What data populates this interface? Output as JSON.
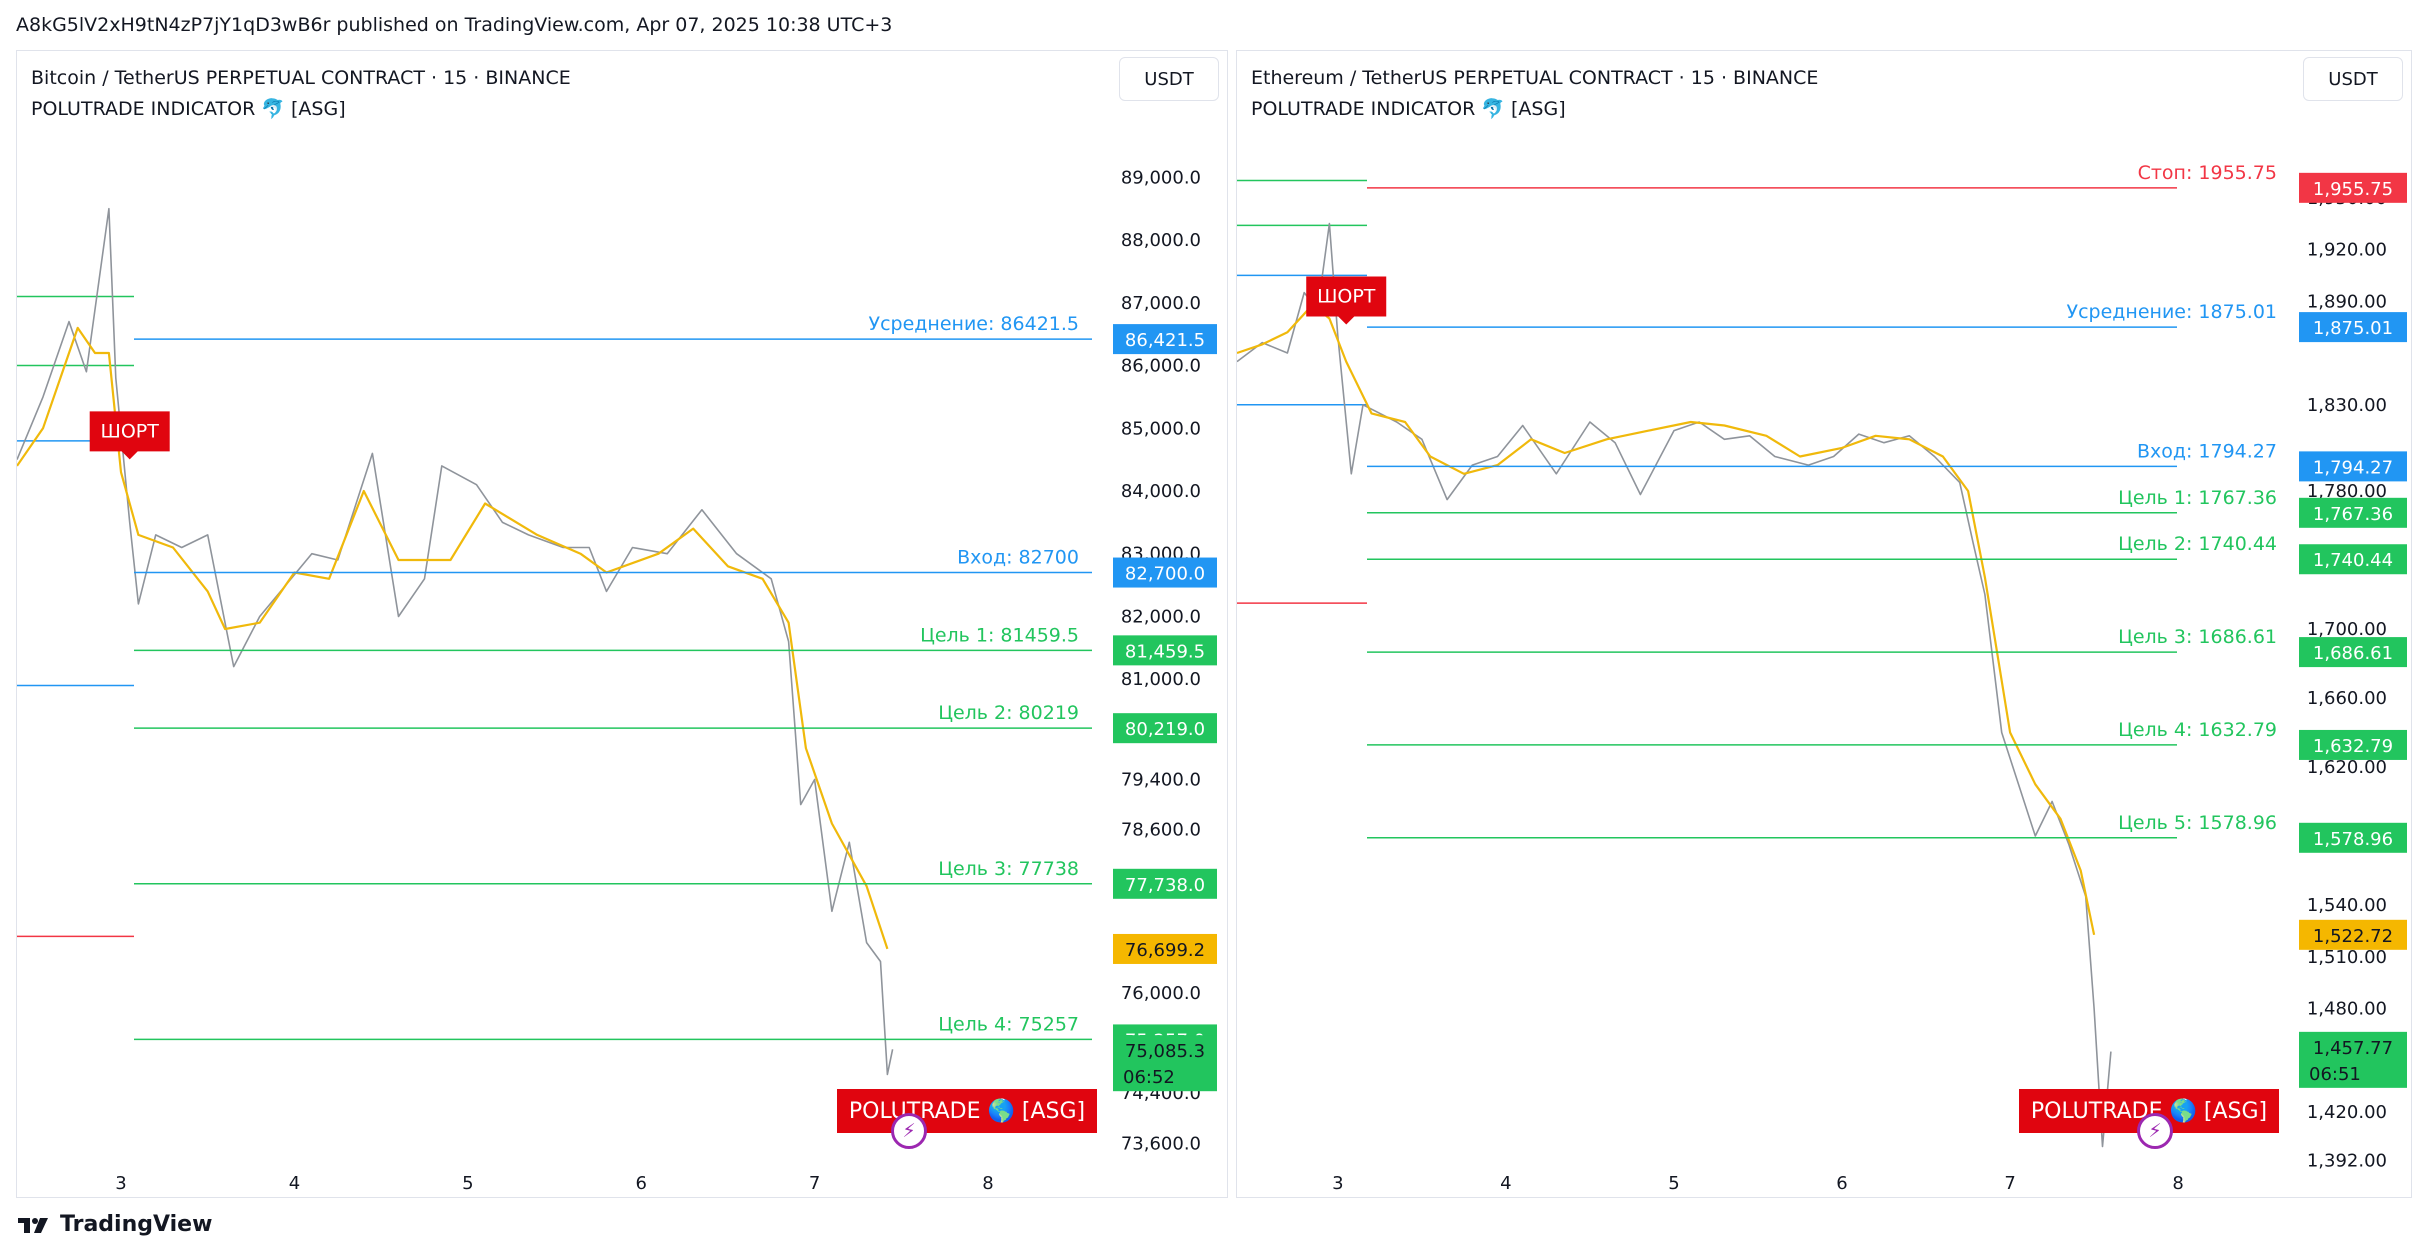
{
  "header": {
    "text": "A8kG5lV2xH9tN4zP7jY1qD3wB6r published on TradingView.com, Apr 07, 2025 10:38 UTC+3"
  },
  "footer": {
    "brand": "TradingView"
  },
  "colors": {
    "up_green": "#22c55e",
    "stop_red": "#f23645",
    "blue": "#2196f3",
    "yellow": "#f5b700",
    "short_red": "#e0050f",
    "candle": "#8f949b",
    "ma": "#f0b90b"
  },
  "chart_data": [
    {
      "type": "line",
      "title": "Bitcoin / TetherUS PERPETUAL CONTRACT · 15 · BINANCE",
      "indicator": "POLUTRADE INDICATOR 🐬 [ASG]",
      "unit": "USDT",
      "x_ticks": [
        "3",
        "4",
        "5",
        "6",
        "7",
        "8"
      ],
      "y_ticks": [
        "89,000.0",
        "88,000.0",
        "87,000.0",
        "86,000.0",
        "85,000.0",
        "84,000.0",
        "83,000.0",
        "82,000.0",
        "81,000.0",
        "79,400.0",
        "78,600.0",
        "76,000.0",
        "74,400.0",
        "73,600.0"
      ],
      "ylim": [
        73000,
        89500
      ],
      "xlim": [
        2.4,
        8.6
      ],
      "series": [
        {
          "values": [
            [
              2.4,
              84400
            ],
            [
              2.55,
              85000
            ],
            [
              2.75,
              86600
            ],
            [
              2.85,
              86200
            ],
            [
              2.93,
              86200
            ],
            [
              3.0,
              84300
            ],
            [
              3.1,
              83300
            ],
            [
              3.3,
              83100
            ],
            [
              3.5,
              82400
            ],
            [
              3.6,
              81800
            ],
            [
              3.8,
              81900
            ],
            [
              4.0,
              82700
            ],
            [
              4.2,
              82600
            ],
            [
              4.4,
              84000
            ],
            [
              4.6,
              82900
            ],
            [
              4.9,
              82900
            ],
            [
              5.1,
              83800
            ],
            [
              5.4,
              83300
            ],
            [
              5.65,
              83000
            ],
            [
              5.8,
              82700
            ],
            [
              6.1,
              83000
            ],
            [
              6.3,
              83400
            ],
            [
              6.5,
              82800
            ],
            [
              6.7,
              82600
            ],
            [
              6.85,
              81900
            ],
            [
              6.95,
              79900
            ],
            [
              7.1,
              78700
            ],
            [
              7.3,
              77700
            ],
            [
              7.42,
              76700
            ]
          ]
        },
        {
          "values": [
            [
              2.4,
              84500
            ],
            [
              2.55,
              85500
            ],
            [
              2.7,
              86700
            ],
            [
              2.8,
              85900
            ],
            [
              2.93,
              88500
            ],
            [
              2.97,
              85800
            ],
            [
              3.05,
              83500
            ],
            [
              3.1,
              82200
            ],
            [
              3.2,
              83300
            ],
            [
              3.35,
              83100
            ],
            [
              3.5,
              83300
            ],
            [
              3.65,
              81200
            ],
            [
              3.8,
              82000
            ],
            [
              3.95,
              82500
            ],
            [
              4.1,
              83000
            ],
            [
              4.25,
              82900
            ],
            [
              4.45,
              84600
            ],
            [
              4.6,
              82000
            ],
            [
              4.75,
              82600
            ],
            [
              4.85,
              84400
            ],
            [
              5.05,
              84100
            ],
            [
              5.2,
              83500
            ],
            [
              5.35,
              83300
            ],
            [
              5.55,
              83100
            ],
            [
              5.7,
              83100
            ],
            [
              5.8,
              82400
            ],
            [
              5.95,
              83100
            ],
            [
              6.15,
              83000
            ],
            [
              6.35,
              83700
            ],
            [
              6.55,
              83000
            ],
            [
              6.75,
              82600
            ],
            [
              6.85,
              81600
            ],
            [
              6.92,
              79000
            ],
            [
              7.0,
              79400
            ],
            [
              7.1,
              77300
            ],
            [
              7.2,
              78400
            ],
            [
              7.3,
              76800
            ],
            [
              7.38,
              76500
            ],
            [
              7.42,
              74700
            ],
            [
              7.45,
              75100
            ]
          ]
        }
      ],
      "levels": [
        {
          "label": "Усреднение: 86421.5",
          "value": 86421.5,
          "badge": "86,421.5",
          "color": "blue"
        },
        {
          "label": "Вход: 82700",
          "value": 82700,
          "badge": "82,700.0",
          "color": "blue"
        },
        {
          "label": "Цель 1: 81459.5",
          "value": 81459.5,
          "badge": "81,459.5",
          "color": "green"
        },
        {
          "label": "Цель 2: 80219",
          "value": 80219,
          "badge": "80,219.0",
          "color": "green"
        },
        {
          "label": "Цель 3: 77738",
          "value": 77738,
          "badge": "77,738.0",
          "color": "green"
        },
        {
          "label": "Цель 4: 75257",
          "value": 75257,
          "badge": "75,257.0",
          "color": "green"
        }
      ],
      "price_badges": [
        {
          "value": 76699.2,
          "text": "76,699.2",
          "color": "yellow"
        },
        {
          "value": 75085.3,
          "text": "75,085.3",
          "sub": "06:52",
          "color": "green"
        }
      ],
      "side_lines": [
        {
          "value": 87100,
          "color": "green"
        },
        {
          "value": 86000,
          "color": "green"
        },
        {
          "value": 84800,
          "color": "blue"
        },
        {
          "value": 80900,
          "color": "blue"
        },
        {
          "value": 76900,
          "color": "red"
        }
      ],
      "signal": {
        "text": "ШОРТ",
        "x": 3.05,
        "value": 84600
      },
      "brand_box": "POLUTRADE 🌎 [ASG]"
    },
    {
      "type": "line",
      "title": "Ethereum / TetherUS PERPETUAL CONTRACT · 15 · BINANCE",
      "indicator": "POLUTRADE INDICATOR 🐬 [ASG]",
      "unit": "USDT",
      "x_ticks": [
        "3",
        "4",
        "5",
        "6",
        "7",
        "8"
      ],
      "y_ticks": [
        "1,950.00",
        "1,920.00",
        "1,890.00",
        "1,830.00",
        "1,780.00",
        "1,700.00",
        "1,660.00",
        "1,620.00",
        "1,540.00",
        "1,510.00",
        "1,480.00",
        "1,420.00",
        "1,392.00"
      ],
      "ylim": [
        1380,
        1980
      ],
      "xlim": [
        2.4,
        8.6
      ],
      "series": [
        {
          "values": [
            [
              2.4,
              1860
            ],
            [
              2.55,
              1865
            ],
            [
              2.7,
              1872
            ],
            [
              2.85,
              1888
            ],
            [
              2.95,
              1880
            ],
            [
              3.05,
              1855
            ],
            [
              3.2,
              1825
            ],
            [
              3.4,
              1820
            ],
            [
              3.55,
              1800
            ],
            [
              3.75,
              1790
            ],
            [
              3.95,
              1795
            ],
            [
              4.15,
              1810
            ],
            [
              4.35,
              1802
            ],
            [
              4.6,
              1810
            ],
            [
              4.85,
              1815
            ],
            [
              5.1,
              1820
            ],
            [
              5.3,
              1818
            ],
            [
              5.55,
              1812
            ],
            [
              5.75,
              1800
            ],
            [
              6.0,
              1805
            ],
            [
              6.2,
              1812
            ],
            [
              6.4,
              1810
            ],
            [
              6.6,
              1800
            ],
            [
              6.75,
              1780
            ],
            [
              6.85,
              1730
            ],
            [
              7.0,
              1640
            ],
            [
              7.15,
              1610
            ],
            [
              7.3,
              1590
            ],
            [
              7.42,
              1560
            ],
            [
              7.5,
              1522.72
            ]
          ]
        },
        {
          "values": [
            [
              2.4,
              1855
            ],
            [
              2.55,
              1866
            ],
            [
              2.7,
              1860
            ],
            [
              2.8,
              1895
            ],
            [
              2.88,
              1885
            ],
            [
              2.95,
              1935
            ],
            [
              3.0,
              1870
            ],
            [
              3.08,
              1790
            ],
            [
              3.15,
              1830
            ],
            [
              3.35,
              1820
            ],
            [
              3.5,
              1810
            ],
            [
              3.65,
              1775
            ],
            [
              3.8,
              1795
            ],
            [
              3.95,
              1800
            ],
            [
              4.1,
              1818
            ],
            [
              4.3,
              1790
            ],
            [
              4.5,
              1820
            ],
            [
              4.65,
              1808
            ],
            [
              4.8,
              1778
            ],
            [
              5.0,
              1815
            ],
            [
              5.15,
              1820
            ],
            [
              5.3,
              1810
            ],
            [
              5.45,
              1812
            ],
            [
              5.6,
              1800
            ],
            [
              5.8,
              1795
            ],
            [
              5.95,
              1800
            ],
            [
              6.1,
              1813
            ],
            [
              6.25,
              1808
            ],
            [
              6.4,
              1812
            ],
            [
              6.55,
              1800
            ],
            [
              6.7,
              1785
            ],
            [
              6.78,
              1750
            ],
            [
              6.85,
              1720
            ],
            [
              6.95,
              1640
            ],
            [
              7.05,
              1610
            ],
            [
              7.15,
              1580
            ],
            [
              7.25,
              1600
            ],
            [
              7.35,
              1575
            ],
            [
              7.45,
              1545
            ],
            [
              7.5,
              1480
            ],
            [
              7.55,
              1400
            ],
            [
              7.6,
              1455
            ]
          ]
        }
      ],
      "levels": [
        {
          "label": "Стоп: 1955.75",
          "value": 1955.75,
          "badge": "1,955.75",
          "color": "red"
        },
        {
          "label": "Усреднение: 1875.01",
          "value": 1875.01,
          "badge": "1,875.01",
          "color": "blue"
        },
        {
          "label": "Вход: 1794.27",
          "value": 1794.27,
          "badge": "1,794.27",
          "color": "blue"
        },
        {
          "label": "Цель 1: 1767.36",
          "value": 1767.36,
          "badge": "1,767.36",
          "color": "green"
        },
        {
          "label": "Цель 2: 1740.44",
          "value": 1740.44,
          "badge": "1,740.44",
          "color": "green"
        },
        {
          "label": "Цель 3: 1686.61",
          "value": 1686.61,
          "badge": "1,686.61",
          "color": "green"
        },
        {
          "label": "Цель 4: 1632.79",
          "value": 1632.79,
          "badge": "1,632.79",
          "color": "green"
        },
        {
          "label": "Цель 5: 1578.96",
          "value": 1578.96,
          "badge": "1,578.96",
          "color": "green"
        }
      ],
      "price_badges": [
        {
          "value": 1522.72,
          "text": "1,522.72",
          "color": "yellow"
        },
        {
          "value": 1457.77,
          "text": "1,457.77",
          "sub": "06:51",
          "color": "green"
        }
      ],
      "side_lines": [
        {
          "value": 1960,
          "color": "green"
        },
        {
          "value": 1934,
          "color": "green"
        },
        {
          "value": 1905,
          "color": "blue"
        },
        {
          "value": 1830,
          "color": "blue"
        },
        {
          "value": 1715,
          "color": "red"
        }
      ],
      "signal": {
        "text": "ШОРТ",
        "x": 3.05,
        "value": 1880
      },
      "brand_box": "POLUTRADE 🌎 [ASG]"
    }
  ]
}
